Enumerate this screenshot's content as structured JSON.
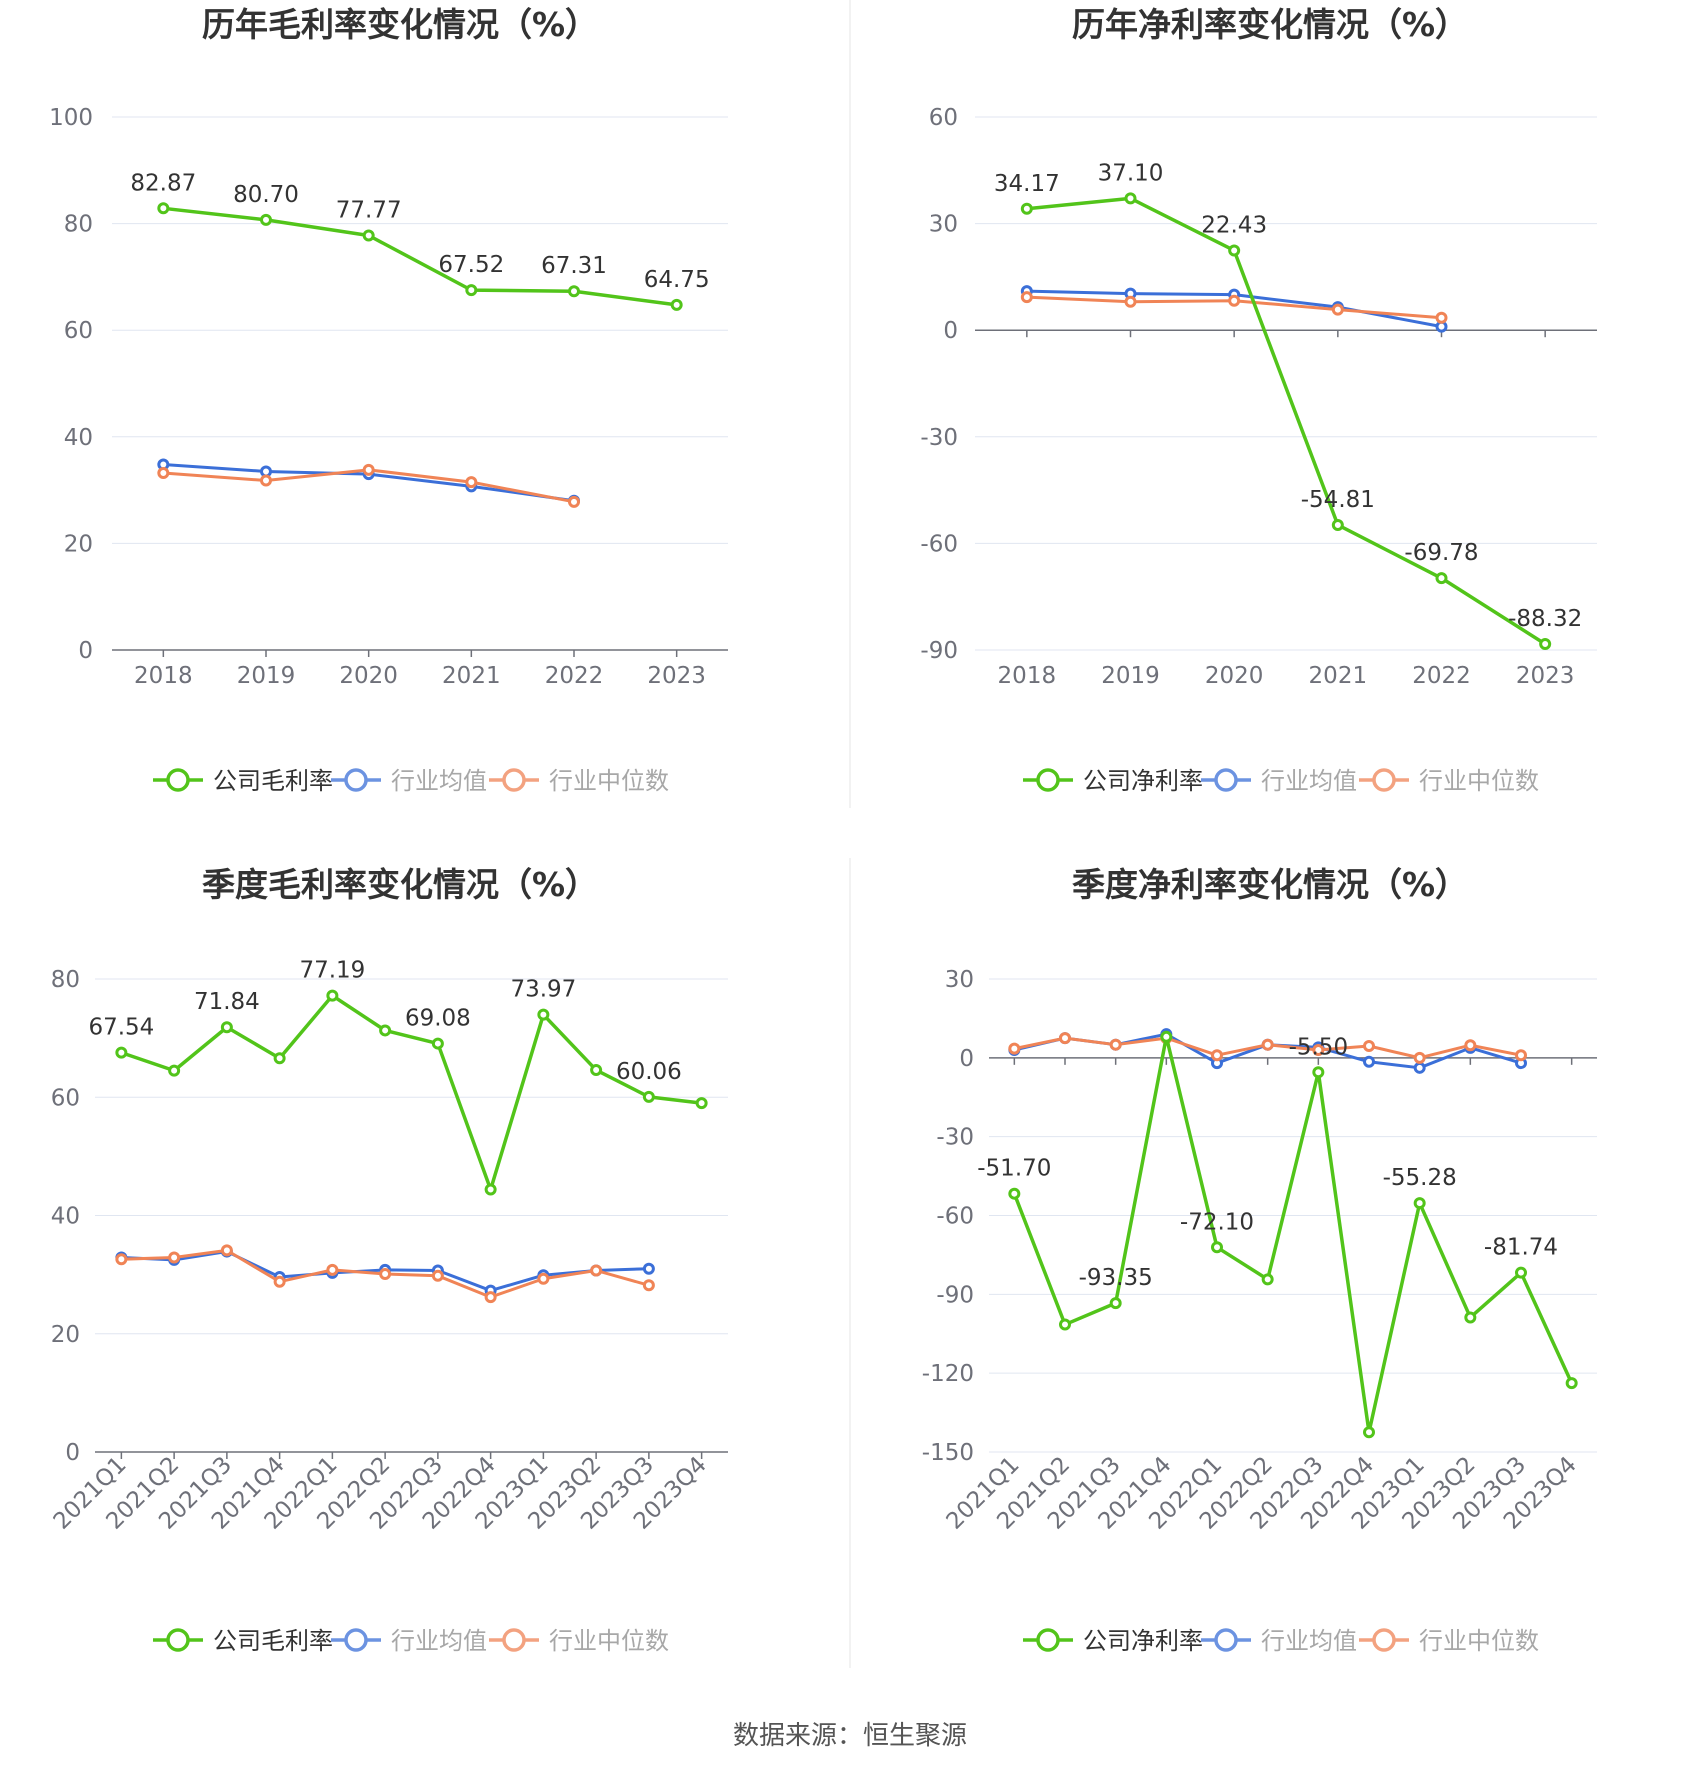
{
  "source_text": "数据来源：恒生聚源",
  "colors": {
    "company": "#52c41a",
    "industry_avg": "#3b6fd8",
    "industry_median": "#f08456"
  },
  "chart_data": [
    {
      "type": "line",
      "title": "历年毛利率变化情况（%）",
      "categories": [
        "2018",
        "2019",
        "2020",
        "2021",
        "2022",
        "2023"
      ],
      "ylim": [
        0,
        100
      ],
      "yticks": [
        0,
        20,
        40,
        60,
        80,
        100
      ],
      "grid": true,
      "legend_position": "bottom",
      "series": [
        {
          "name": "公司毛利率",
          "values": [
            82.87,
            80.7,
            77.77,
            67.52,
            67.31,
            64.75
          ],
          "labels": [
            "82.87",
            "80.70",
            "77.77",
            "67.52",
            "67.31",
            "64.75"
          ]
        },
        {
          "name": "行业均值",
          "values": [
            34.8,
            33.5,
            33.0,
            30.7,
            28.0,
            null
          ]
        },
        {
          "name": "行业中位数",
          "values": [
            33.2,
            31.8,
            33.8,
            31.5,
            27.8,
            null
          ]
        }
      ]
    },
    {
      "type": "line",
      "title": "历年净利率变化情况（%）",
      "categories": [
        "2018",
        "2019",
        "2020",
        "2021",
        "2022",
        "2023"
      ],
      "ylim": [
        -90,
        60
      ],
      "yticks": [
        -90,
        -60,
        -30,
        0,
        30,
        60
      ],
      "grid": true,
      "legend_position": "bottom",
      "series": [
        {
          "name": "公司净利率",
          "values": [
            34.17,
            37.1,
            22.43,
            -54.81,
            -69.78,
            -88.32
          ],
          "labels": [
            "34.17",
            "37.10",
            "22.43",
            "-54.81",
            "-69.78",
            "-88.32"
          ]
        },
        {
          "name": "行业均值",
          "values": [
            11.0,
            10.3,
            10.0,
            6.5,
            1.0,
            null
          ]
        },
        {
          "name": "行业中位数",
          "values": [
            9.3,
            8.0,
            8.3,
            5.8,
            3.5,
            null
          ]
        }
      ]
    },
    {
      "type": "line",
      "title": "季度毛利率变化情况（%）",
      "categories": [
        "2021Q1",
        "2021Q2",
        "2021Q3",
        "2021Q4",
        "2022Q1",
        "2022Q2",
        "2022Q3",
        "2022Q4",
        "2023Q1",
        "2023Q2",
        "2023Q3",
        "2023Q4"
      ],
      "ylim": [
        0,
        80
      ],
      "yticks": [
        0,
        20,
        40,
        60,
        80
      ],
      "grid": true,
      "legend_position": "bottom",
      "series": [
        {
          "name": "公司毛利率",
          "values": [
            67.54,
            64.5,
            71.84,
            66.6,
            77.19,
            71.3,
            69.08,
            44.4,
            73.97,
            64.6,
            60.06,
            59.0
          ],
          "labels": [
            "67.54",
            "",
            "71.84",
            "",
            "77.19",
            "",
            "69.08",
            "",
            "73.97",
            "",
            "60.06",
            ""
          ]
        },
        {
          "name": "行业均值",
          "values": [
            32.9,
            32.5,
            33.9,
            29.6,
            30.3,
            30.8,
            30.7,
            27.3,
            29.9,
            30.7,
            31.0,
            null
          ]
        },
        {
          "name": "行业中位数",
          "values": [
            32.6,
            32.9,
            34.1,
            28.8,
            30.8,
            30.1,
            29.8,
            26.2,
            29.3,
            30.7,
            28.2,
            null
          ]
        }
      ]
    },
    {
      "type": "line",
      "title": "季度净利率变化情况（%）",
      "categories": [
        "2021Q1",
        "2021Q2",
        "2021Q3",
        "2021Q4",
        "2022Q1",
        "2022Q2",
        "2022Q3",
        "2022Q4",
        "2023Q1",
        "2023Q2",
        "2023Q3",
        "2023Q4"
      ],
      "ylim": [
        -150,
        30
      ],
      "yticks": [
        -150,
        -120,
        -90,
        -60,
        -30,
        0,
        30
      ],
      "grid": true,
      "legend_position": "bottom",
      "series": [
        {
          "name": "公司净利率",
          "values": [
            -51.7,
            -101.5,
            -93.35,
            8.0,
            -72.1,
            -84.3,
            -5.5,
            -142.5,
            -55.28,
            -98.8,
            -81.74,
            -123.8
          ],
          "labels": [
            "-51.70",
            "",
            "-93.35",
            "",
            "-72.10",
            "",
            "-5.50",
            "",
            "-55.28",
            "",
            "-81.74",
            ""
          ]
        },
        {
          "name": "行业均值",
          "values": [
            3.0,
            7.5,
            5.0,
            9.0,
            -2.0,
            5.0,
            4.0,
            -1.5,
            -3.8,
            3.8,
            -2.0,
            null
          ]
        },
        {
          "name": "行业中位数",
          "values": [
            3.5,
            7.5,
            5.0,
            7.5,
            1.0,
            5.0,
            3.0,
            4.5,
            0.0,
            4.8,
            1.0,
            null
          ]
        }
      ]
    }
  ]
}
